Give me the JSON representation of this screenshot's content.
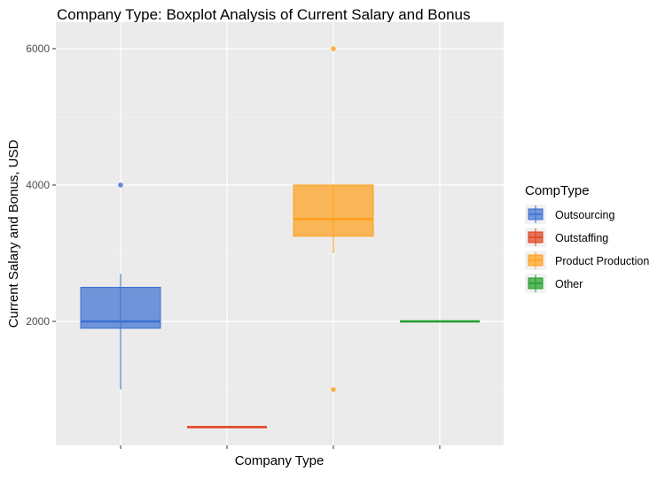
{
  "chart_data": {
    "type": "boxplot",
    "title": "Company Type: Boxplot Analysis of Current Salary and Bonus",
    "xlabel": "Company Type",
    "ylabel": "Current Salary and Bonus, USD",
    "ylim": [
      0,
      6200
    ],
    "yticks": [
      "2000",
      "4000",
      "6000"
    ],
    "grid": true,
    "legend": {
      "title": "CompType",
      "placement": "right"
    },
    "series": [
      {
        "name": "Outsourcing",
        "color": "#3C6FD1",
        "min": 1000,
        "q1": 1900,
        "median": 2000,
        "q3": 2500,
        "max": 2700,
        "outliers": [
          4000
        ]
      },
      {
        "name": "Outstaffing",
        "color": "#E0401A",
        "min": 450,
        "q1": 450,
        "median": 450,
        "q3": 450,
        "max": 450,
        "outliers": []
      },
      {
        "name": "Product Production",
        "color": "#FF9F1A",
        "min": 3000,
        "q1": 3250,
        "median": 3500,
        "q3": 4000,
        "max": 4000,
        "outliers": [
          6000,
          1000
        ]
      },
      {
        "name": "Other",
        "color": "#1E9E2A",
        "min": 2000,
        "q1": 2000,
        "median": 2000,
        "q3": 2000,
        "max": 2000,
        "outliers": []
      }
    ]
  }
}
